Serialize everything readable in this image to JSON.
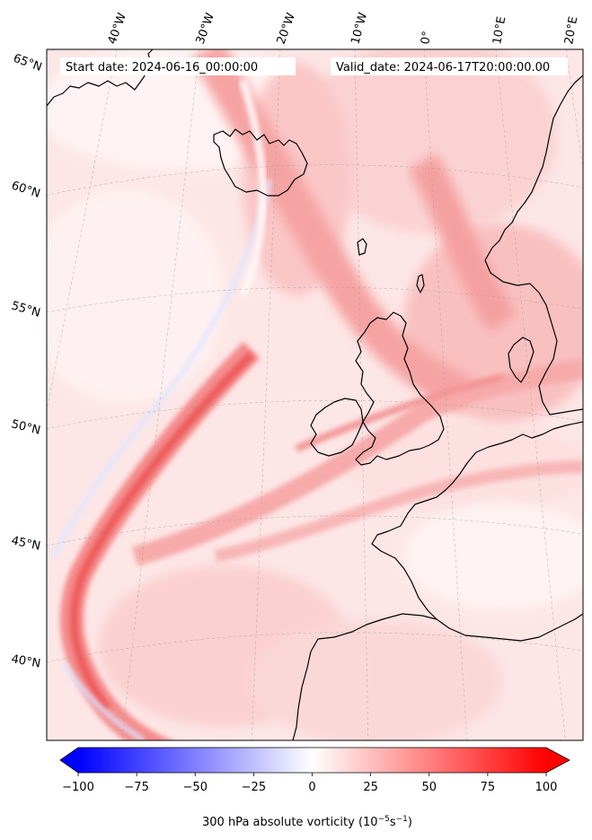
{
  "header": {
    "start_date": "Start date: 2024-06-16_00:00:00",
    "valid_date": "Valid_date: 2024-06-17T20:00:00.00"
  },
  "longitude_labels": [
    "40°W",
    "30°W",
    "20°W",
    "10°W",
    "0°",
    "10°E",
    "20°E"
  ],
  "latitude_labels": [
    "65°N",
    "60°N",
    "55°N",
    "50°N",
    "45°N",
    "40°N"
  ],
  "colorbar": {
    "ticks": [
      "−100",
      "−75",
      "−50",
      "−25",
      "0",
      "25",
      "50",
      "75",
      "100"
    ],
    "label_main": "300 hPa absolute vorticity (10",
    "label_exp1": "−5",
    "label_mid": "s",
    "label_exp2": "−1",
    "label_end": ")",
    "min": -100,
    "max": 100,
    "extend": "both",
    "colormap": "bwr"
  },
  "colors": {
    "low": "#0000ff",
    "mid": "#ffffff",
    "high": "#ff0000",
    "coastline": "#000000"
  }
}
